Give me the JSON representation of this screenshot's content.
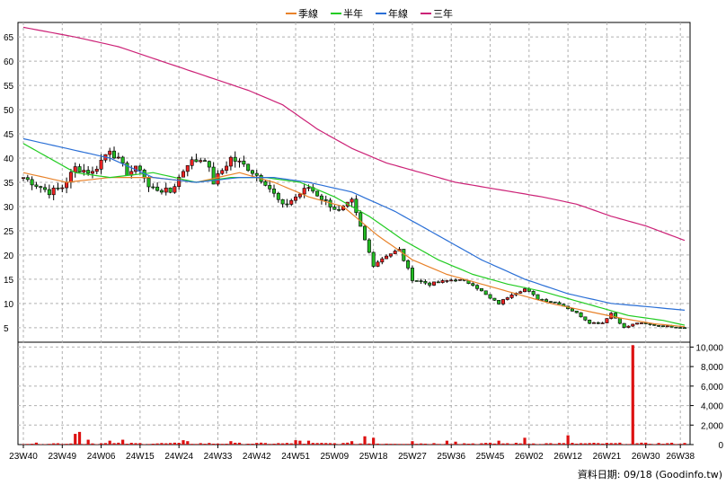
{
  "chart_data": {
    "type": "candlestick",
    "legend": [
      {
        "name": "季線",
        "color": "#e8822a"
      },
      {
        "name": "半年",
        "color": "#22cc22"
      },
      {
        "name": "年線",
        "color": "#2a6fd6"
      },
      {
        "name": "三年",
        "color": "#cc2277"
      }
    ],
    "price_axis": {
      "ylim": [
        2,
        68
      ],
      "ticks": [
        5,
        10,
        15,
        20,
        25,
        30,
        35,
        40,
        45,
        50,
        55,
        60,
        65
      ]
    },
    "volume_axis": {
      "ylim": [
        0,
        10500
      ],
      "ticks": [
        0,
        2000,
        4000,
        6000,
        8000,
        10000
      ],
      "tick_labels": [
        "0",
        "2,000",
        "4,000",
        "6,000",
        "8,000",
        "10,000"
      ]
    },
    "x_labels": [
      "23W40",
      "23W49",
      "24W06",
      "24W15",
      "24W24",
      "24W33",
      "24W42",
      "24W51",
      "25W09",
      "25W18",
      "25W27",
      "25W36",
      "25W45",
      "26W02",
      "26W12",
      "26W21",
      "26W30",
      "26W38"
    ],
    "x_label_index": [
      0,
      9,
      18,
      27,
      36,
      45,
      54,
      63,
      72,
      81,
      90,
      99,
      108,
      117,
      126,
      135,
      144,
      152
    ],
    "weeks": 154,
    "price_anchors": [
      [
        0,
        36
      ],
      [
        6,
        33
      ],
      [
        9,
        34
      ],
      [
        12,
        38
      ],
      [
        16,
        37
      ],
      [
        20,
        42
      ],
      [
        24,
        37
      ],
      [
        27,
        38
      ],
      [
        29,
        34
      ],
      [
        34,
        33
      ],
      [
        38,
        39
      ],
      [
        42,
        40
      ],
      [
        44,
        35
      ],
      [
        48,
        40
      ],
      [
        52,
        38
      ],
      [
        56,
        35
      ],
      [
        60,
        30
      ],
      [
        63,
        32
      ],
      [
        66,
        34
      ],
      [
        70,
        31
      ],
      [
        73,
        29
      ],
      [
        76,
        31
      ],
      [
        79,
        23
      ],
      [
        81,
        18
      ],
      [
        84,
        20
      ],
      [
        87,
        21
      ],
      [
        90,
        15
      ],
      [
        94,
        14
      ],
      [
        100,
        15
      ],
      [
        104,
        14
      ],
      [
        108,
        11
      ],
      [
        110,
        10
      ],
      [
        113,
        12
      ],
      [
        116,
        13
      ],
      [
        119,
        11
      ],
      [
        124,
        10
      ],
      [
        128,
        8
      ],
      [
        131,
        6
      ],
      [
        134,
        6
      ],
      [
        136,
        8
      ],
      [
        139,
        5
      ],
      [
        142,
        6
      ],
      [
        146,
        5.5
      ],
      [
        150,
        5.2
      ],
      [
        153,
        5.0
      ]
    ],
    "series": [
      {
        "name": "季線",
        "anchors": [
          [
            0,
            37
          ],
          [
            10,
            35
          ],
          [
            20,
            36
          ],
          [
            30,
            36
          ],
          [
            40,
            35
          ],
          [
            50,
            37
          ],
          [
            58,
            35
          ],
          [
            66,
            32
          ],
          [
            74,
            30
          ],
          [
            82,
            24
          ],
          [
            90,
            19
          ],
          [
            98,
            16
          ],
          [
            106,
            14
          ],
          [
            114,
            12
          ],
          [
            122,
            10
          ],
          [
            130,
            8.5
          ],
          [
            138,
            7
          ],
          [
            146,
            5.8
          ],
          [
            153,
            5.2
          ]
        ]
      },
      {
        "name": "半年",
        "anchors": [
          [
            0,
            43
          ],
          [
            6,
            40
          ],
          [
            12,
            37
          ],
          [
            20,
            36
          ],
          [
            30,
            37
          ],
          [
            40,
            35
          ],
          [
            48,
            36
          ],
          [
            56,
            36
          ],
          [
            64,
            35
          ],
          [
            72,
            32
          ],
          [
            80,
            28
          ],
          [
            88,
            23
          ],
          [
            96,
            19
          ],
          [
            104,
            16
          ],
          [
            112,
            14
          ],
          [
            120,
            12.5
          ],
          [
            130,
            10
          ],
          [
            140,
            7.5
          ],
          [
            148,
            6.5
          ],
          [
            153,
            5.5
          ]
        ]
      },
      {
        "name": "年線",
        "anchors": [
          [
            0,
            44
          ],
          [
            10,
            42
          ],
          [
            20,
            40
          ],
          [
            30,
            36
          ],
          [
            40,
            35
          ],
          [
            50,
            36
          ],
          [
            58,
            36
          ],
          [
            66,
            35
          ],
          [
            76,
            33
          ],
          [
            86,
            29
          ],
          [
            96,
            24
          ],
          [
            106,
            19
          ],
          [
            116,
            15
          ],
          [
            126,
            12
          ],
          [
            136,
            10
          ],
          [
            146,
            9.2
          ],
          [
            153,
            8.6
          ]
        ]
      },
      {
        "name": "三年",
        "anchors": [
          [
            0,
            67
          ],
          [
            12,
            65
          ],
          [
            22,
            63
          ],
          [
            32,
            60
          ],
          [
            42,
            57
          ],
          [
            52,
            54
          ],
          [
            60,
            51
          ],
          [
            68,
            46
          ],
          [
            76,
            42
          ],
          [
            84,
            39
          ],
          [
            92,
            37
          ],
          [
            100,
            35
          ],
          [
            110,
            33.5
          ],
          [
            120,
            32
          ],
          [
            128,
            30.5
          ],
          [
            136,
            28
          ],
          [
            144,
            26
          ],
          [
            153,
            23
          ]
        ]
      }
    ],
    "volume_spikes": [
      [
        12,
        1100
      ],
      [
        13,
        1300
      ],
      [
        15,
        500
      ],
      [
        20,
        400
      ],
      [
        23,
        500
      ],
      [
        37,
        450
      ],
      [
        38,
        350
      ],
      [
        48,
        350
      ],
      [
        63,
        450
      ],
      [
        64,
        400
      ],
      [
        66,
        400
      ],
      [
        76,
        350
      ],
      [
        79,
        850
      ],
      [
        81,
        700
      ],
      [
        90,
        350
      ],
      [
        98,
        400
      ],
      [
        100,
        300
      ],
      [
        110,
        400
      ],
      [
        116,
        700
      ],
      [
        126,
        950
      ],
      [
        141,
        10200
      ]
    ],
    "footer": "資料日期: 09/18  (Goodinfo.tw)"
  }
}
